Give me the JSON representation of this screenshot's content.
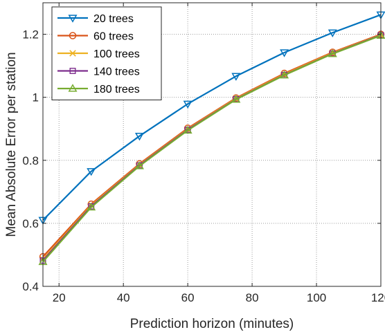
{
  "chart_data": {
    "type": "line",
    "xlabel": "Prediction horizon (minutes)",
    "ylabel": "Mean Absolute Error per station",
    "xlim": [
      15,
      120
    ],
    "ylim": [
      0.4,
      1.3
    ],
    "xticks": [
      20,
      40,
      60,
      80,
      100,
      120
    ],
    "yticks": [
      0.4,
      0.6,
      0.8,
      1.0,
      1.2
    ],
    "xtick_labels": [
      "20",
      "40",
      "60",
      "80",
      "100",
      "120"
    ],
    "ytick_labels": [
      "0.4",
      "0.6",
      "0.8",
      "1",
      "1.2"
    ],
    "grid": true,
    "legend_position": "top-left",
    "x": [
      15,
      30,
      45,
      60,
      75,
      90,
      105,
      120
    ],
    "series": [
      {
        "name": "20 trees",
        "values": [
          0.61,
          0.765,
          0.877,
          0.979,
          1.067,
          1.142,
          1.205,
          1.262
        ],
        "color": "#0072BD",
        "marker": "triangle-down"
      },
      {
        "name": "60 trees",
        "values": [
          0.494,
          0.661,
          0.789,
          0.902,
          0.998,
          1.076,
          1.143,
          1.2
        ],
        "color": "#D95319",
        "marker": "circle"
      },
      {
        "name": "100 trees",
        "values": [
          0.486,
          0.657,
          0.786,
          0.899,
          0.996,
          1.073,
          1.141,
          1.198
        ],
        "color": "#EDB120",
        "marker": "x"
      },
      {
        "name": "140 trees",
        "values": [
          0.482,
          0.654,
          0.784,
          0.897,
          0.994,
          1.071,
          1.139,
          1.197
        ],
        "color": "#7E2F8E",
        "marker": "square"
      },
      {
        "name": "180 trees",
        "values": [
          0.478,
          0.651,
          0.782,
          0.895,
          0.993,
          1.07,
          1.138,
          1.196
        ],
        "color": "#77AC30",
        "marker": "triangle-up"
      }
    ]
  }
}
